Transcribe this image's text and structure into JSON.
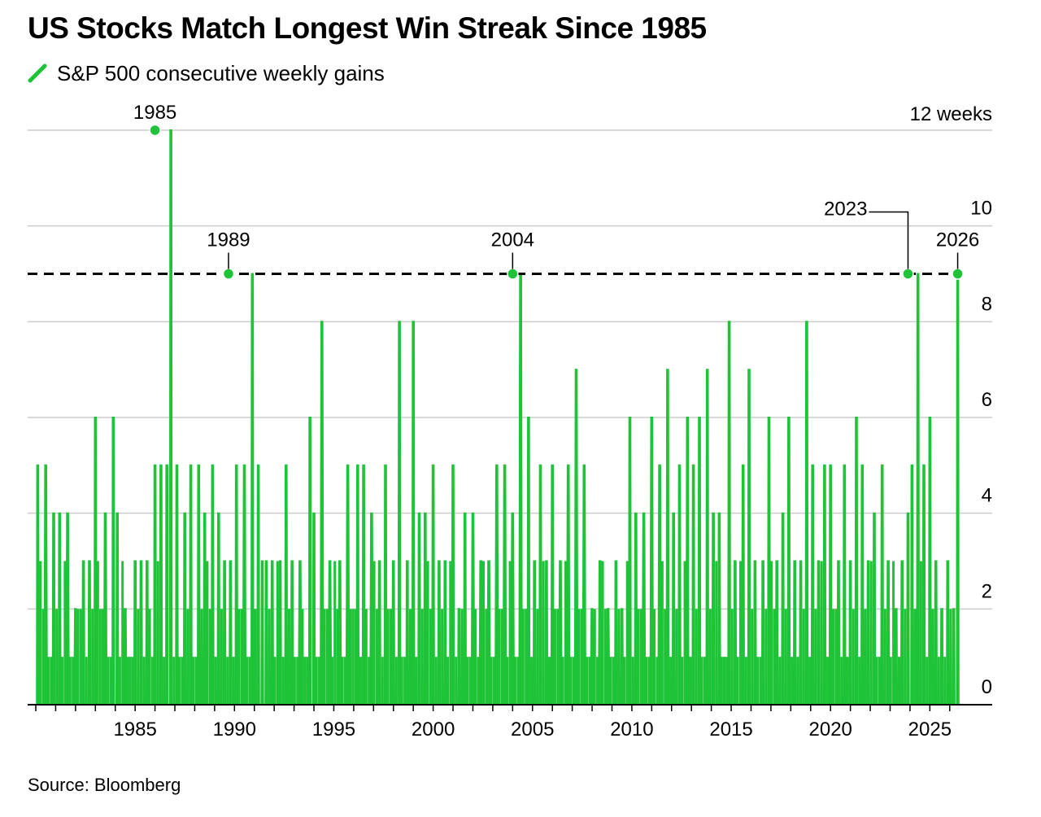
{
  "title": "US Stocks Match Longest Win Streak Since 1985",
  "source": "Source: Bloomberg",
  "colors": {
    "series": "#1ec337",
    "grid": "#cccccc",
    "reference": "#000000",
    "text": "#000000"
  },
  "legend_icon": "green-line-icon",
  "chart_data": {
    "type": "area",
    "title": "US Stocks Match Longest Win Streak Since 1985",
    "subtitle": "",
    "xlabel": "",
    "ylabel": "",
    "x_range": [
      1980,
      2026.5
    ],
    "ylim": [
      0,
      12
    ],
    "grid": true,
    "legend_position": "top-left",
    "x_ticks": [
      {
        "value": 1985,
        "label": "1985"
      },
      {
        "value": 1990,
        "label": "1990"
      },
      {
        "value": 1995,
        "label": "1995"
      },
      {
        "value": 2000,
        "label": "2000"
      },
      {
        "value": 2005,
        "label": "2005"
      },
      {
        "value": 2010,
        "label": "2010"
      },
      {
        "value": 2015,
        "label": "2015"
      },
      {
        "value": 2020,
        "label": "2020"
      },
      {
        "value": 2025,
        "label": "2025"
      }
    ],
    "y_ticks": [
      {
        "value": 0,
        "label": "0"
      },
      {
        "value": 2,
        "label": "2"
      },
      {
        "value": 4,
        "label": "4"
      },
      {
        "value": 6,
        "label": "6"
      },
      {
        "value": 8,
        "label": "8"
      },
      {
        "value": 10,
        "label": "10"
      },
      {
        "value": 12,
        "label": "12 weeks"
      }
    ],
    "reference_line": {
      "value": 9,
      "style": "dashed"
    },
    "series": [
      {
        "name": "S&P 500 consecutive weekly gains",
        "peaks": [
          [
            1980.1,
            5
          ],
          [
            1980.5,
            5
          ],
          [
            1980.9,
            4
          ],
          [
            1981.2,
            4
          ],
          [
            1981.6,
            4
          ],
          [
            1982.0,
            2
          ],
          [
            1982.4,
            3
          ],
          [
            1982.7,
            3
          ],
          [
            1983.0,
            6
          ],
          [
            1983.5,
            4
          ],
          [
            1983.9,
            6
          ],
          [
            1984.1,
            4
          ],
          [
            1984.5,
            2
          ],
          [
            1985.0,
            3
          ],
          [
            1985.3,
            3
          ],
          [
            1985.6,
            3
          ],
          [
            1986.0,
            5
          ],
          [
            1986.3,
            5
          ],
          [
            1986.6,
            5
          ],
          [
            1986.8,
            12
          ],
          [
            1987.1,
            5
          ],
          [
            1987.5,
            4
          ],
          [
            1987.8,
            5
          ],
          [
            1988.2,
            5
          ],
          [
            1988.5,
            4
          ],
          [
            1988.9,
            5
          ],
          [
            1989.2,
            4
          ],
          [
            1989.5,
            3
          ],
          [
            1989.8,
            3
          ],
          [
            1990.1,
            5
          ],
          [
            1990.5,
            5
          ],
          [
            1990.9,
            9
          ],
          [
            1991.2,
            5
          ],
          [
            1991.4,
            3
          ],
          [
            1991.6,
            3
          ],
          [
            1991.9,
            3
          ],
          [
            1992.3,
            3
          ],
          [
            1992.6,
            5
          ],
          [
            1992.9,
            3
          ],
          [
            1993.3,
            3
          ],
          [
            1993.8,
            6
          ],
          [
            1994.0,
            4
          ],
          [
            1994.4,
            8
          ],
          [
            1994.8,
            3
          ],
          [
            1995.3,
            3
          ],
          [
            1995.7,
            5
          ],
          [
            1996.2,
            5
          ],
          [
            1996.5,
            5
          ],
          [
            1996.9,
            4
          ],
          [
            1997.3,
            3
          ],
          [
            1997.6,
            5
          ],
          [
            1998.0,
            3
          ],
          [
            1998.3,
            8
          ],
          [
            1998.7,
            3
          ],
          [
            1999.0,
            8
          ],
          [
            1999.3,
            4
          ],
          [
            1999.6,
            4
          ],
          [
            2000.0,
            5
          ],
          [
            2000.3,
            3
          ],
          [
            2000.6,
            3
          ],
          [
            2001.0,
            5
          ],
          [
            2001.3,
            2
          ],
          [
            2001.6,
            4
          ],
          [
            2002.0,
            4
          ],
          [
            2002.4,
            3
          ],
          [
            2002.8,
            3
          ],
          [
            2003.2,
            5
          ],
          [
            2003.6,
            5
          ],
          [
            2004.0,
            4
          ],
          [
            2004.4,
            9
          ],
          [
            2004.8,
            6
          ],
          [
            2005.1,
            3
          ],
          [
            2005.4,
            5
          ],
          [
            2005.7,
            3
          ],
          [
            2006.0,
            5
          ],
          [
            2006.4,
            3
          ],
          [
            2006.8,
            5
          ],
          [
            2007.2,
            7
          ],
          [
            2007.6,
            5
          ],
          [
            2008.0,
            2
          ],
          [
            2008.4,
            3
          ],
          [
            2008.8,
            2
          ],
          [
            2009.2,
            3
          ],
          [
            2009.5,
            2
          ],
          [
            2009.9,
            6
          ],
          [
            2010.2,
            4
          ],
          [
            2010.6,
            4
          ],
          [
            2011.0,
            6
          ],
          [
            2011.4,
            5
          ],
          [
            2011.8,
            7
          ],
          [
            2012.1,
            4
          ],
          [
            2012.4,
            5
          ],
          [
            2012.8,
            6
          ],
          [
            2013.1,
            5
          ],
          [
            2013.4,
            6
          ],
          [
            2013.8,
            7
          ],
          [
            2014.1,
            4
          ],
          [
            2014.4,
            4
          ],
          [
            2014.9,
            8
          ],
          [
            2015.2,
            3
          ],
          [
            2015.6,
            5
          ],
          [
            2015.9,
            7
          ],
          [
            2016.2,
            3
          ],
          [
            2016.6,
            3
          ],
          [
            2016.9,
            6
          ],
          [
            2017.3,
            3
          ],
          [
            2017.6,
            4
          ],
          [
            2017.9,
            6
          ],
          [
            2018.2,
            3
          ],
          [
            2018.5,
            3
          ],
          [
            2018.8,
            8
          ],
          [
            2019.1,
            5
          ],
          [
            2019.4,
            3
          ],
          [
            2019.7,
            5
          ],
          [
            2020.0,
            5
          ],
          [
            2020.4,
            3
          ],
          [
            2020.7,
            5
          ],
          [
            2021.0,
            3
          ],
          [
            2021.3,
            6
          ],
          [
            2021.6,
            5
          ],
          [
            2021.9,
            3
          ],
          [
            2022.2,
            4
          ],
          [
            2022.6,
            5
          ],
          [
            2022.9,
            3
          ],
          [
            2023.3,
            2
          ],
          [
            2023.6,
            3
          ],
          [
            2023.9,
            4
          ],
          [
            2024.1,
            5
          ],
          [
            2024.4,
            9
          ],
          [
            2024.7,
            5
          ],
          [
            2025.0,
            6
          ],
          [
            2025.3,
            3
          ],
          [
            2025.6,
            2
          ],
          [
            2025.9,
            3
          ],
          [
            2026.2,
            2
          ],
          [
            2026.4,
            9
          ]
        ]
      }
    ],
    "annotations": [
      {
        "x": 1986.0,
        "y": 12,
        "label": "1985"
      },
      {
        "x": 1989.7,
        "y": 9,
        "label": "1989"
      },
      {
        "x": 2004.0,
        "y": 9,
        "label": "2004"
      },
      {
        "x": 2023.9,
        "y": 9,
        "label": "2023"
      },
      {
        "x": 2026.4,
        "y": 9,
        "label": "2026"
      }
    ]
  }
}
